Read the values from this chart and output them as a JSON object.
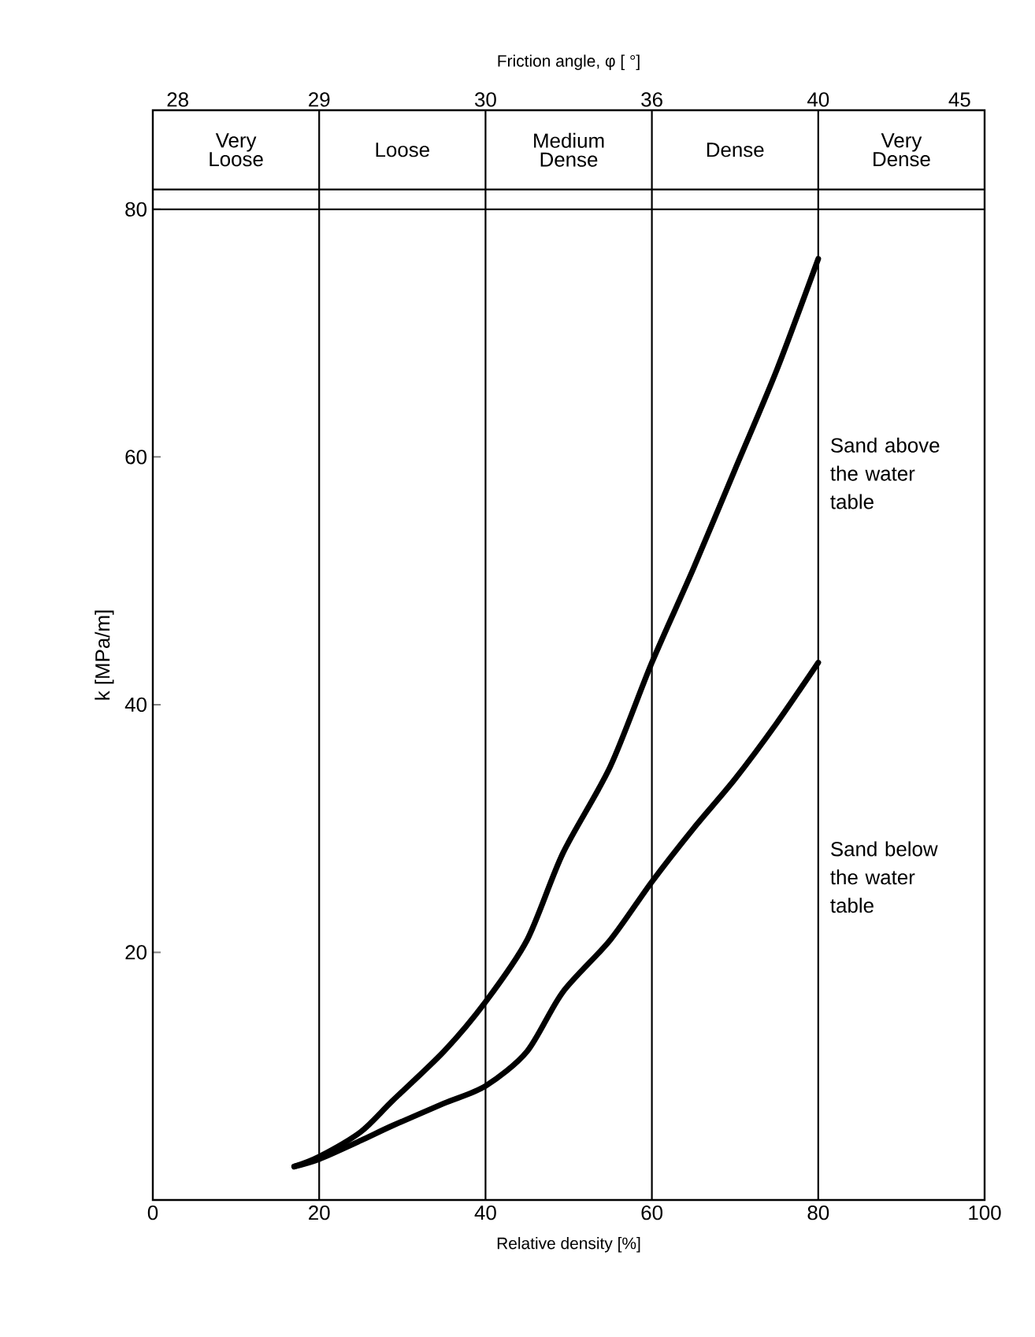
{
  "chart_data": {
    "type": "line",
    "xlabel": "Relative density [%]",
    "ylabel": "k [MPa/m]",
    "xlim": [
      0,
      100
    ],
    "xticks": [
      0,
      20,
      40,
      60,
      80,
      100
    ],
    "ylim": [
      0,
      88
    ],
    "yticks": [
      20,
      40,
      60,
      80
    ],
    "series": [
      {
        "name": "Sand above the water table",
        "color": "#000000",
        "x": [
          17,
          20,
          25,
          28.8,
          35,
          40,
          45,
          49.3,
          55,
          60,
          65,
          70,
          75,
          80
        ],
        "values": [
          2.7,
          3.5,
          5.5,
          8,
          12,
          16,
          21,
          28,
          35,
          43.4,
          51,
          59,
          67,
          76
        ]
      },
      {
        "name": "Sand below the water table",
        "color": "#000000",
        "x": [
          17,
          20,
          25,
          28.8,
          35,
          40,
          45,
          49.3,
          55,
          60,
          65,
          70,
          75,
          80
        ],
        "values": [
          2.7,
          3.3,
          4.8,
          6,
          7.8,
          9.2,
          12,
          16.8,
          21,
          25.7,
          30,
          34,
          38.5,
          43.4
        ]
      }
    ],
    "ref_lines": [
      {
        "axis": "x",
        "value": 20
      },
      {
        "axis": "x",
        "value": 40
      },
      {
        "axis": "x",
        "value": 60
      },
      {
        "axis": "x",
        "value": 80
      },
      {
        "axis": "y",
        "value": 80
      },
      {
        "axis": "y",
        "value": 81.6
      }
    ],
    "annotations": [
      "Friction angle, φ [ °]",
      "28",
      {
        "text": "29",
        "x": 20,
        "y": 88
      },
      {
        "text": "30",
        "x": 40,
        "y": 88
      },
      {
        "text": "36",
        "x": 60,
        "y": 88
      },
      {
        "text": "40",
        "x": 80,
        "y": 88
      },
      "45",
      "Very Loose",
      "Loose",
      "Medium Dense",
      "Dense",
      "Very Dense"
    ]
  }
}
